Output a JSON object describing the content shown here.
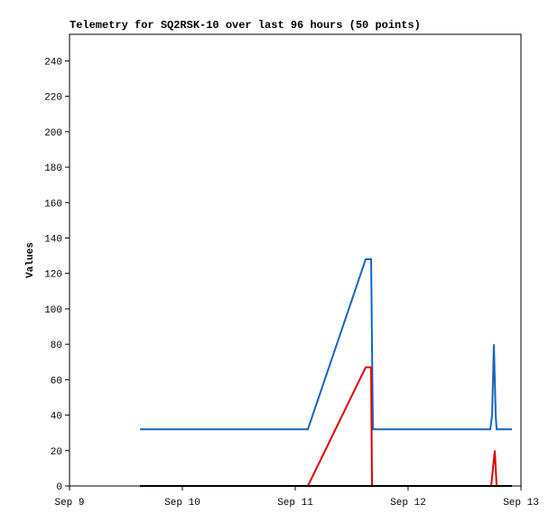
{
  "chart_data": {
    "type": "line",
    "title": "Telemetry for SQ2RSK-10 over last 96 hours (50 points)",
    "y_label": "Values",
    "xlim": [
      0,
      4
    ],
    "xticks": [
      {
        "value": 0,
        "label": "Sep 9"
      },
      {
        "value": 1,
        "label": "Sep 10"
      },
      {
        "value": 2,
        "label": "Sep 11"
      },
      {
        "value": 3,
        "label": "Sep 12"
      },
      {
        "value": 4,
        "label": "Sep 13"
      }
    ],
    "ylim": [
      0,
      255
    ],
    "yticks": [
      0,
      20,
      40,
      60,
      80,
      100,
      120,
      140,
      160,
      180,
      200,
      220,
      240
    ],
    "grid": false,
    "series": [
      {
        "color": "#1565c0",
        "x": [
          0.624,
          2.112,
          2.624,
          2.672,
          2.68,
          2.688,
          3.728,
          3.744,
          3.76,
          3.776,
          3.784,
          3.92
        ],
        "values": [
          32,
          32,
          128,
          128,
          80,
          32,
          32,
          40,
          80,
          40,
          32,
          32
        ]
      },
      {
        "color": "#e00000",
        "x": [
          0.624,
          2.112,
          2.624,
          2.672,
          2.68,
          3.736,
          3.768,
          3.784
        ],
        "values": [
          0,
          0,
          67,
          67,
          0,
          0,
          20,
          0
        ]
      },
      {
        "color": "#000000",
        "x": [
          0.624,
          3.92
        ],
        "values": [
          0,
          0
        ]
      }
    ]
  }
}
